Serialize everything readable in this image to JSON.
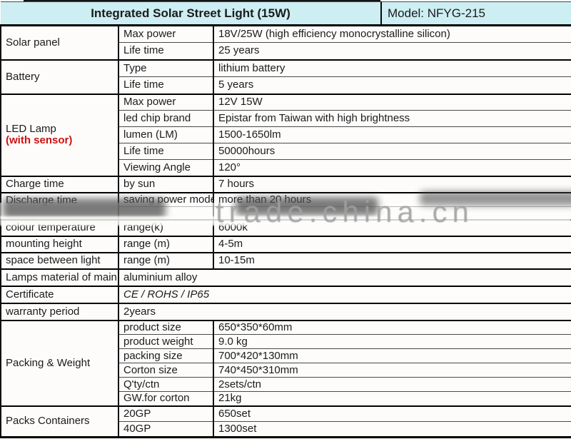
{
  "header": {
    "title": "Integrated Solar Street Light (15W)",
    "model": "Model: NFYG-215"
  },
  "watermark": {
    "text": "trade.china.cn"
  },
  "colors": {
    "header_bg": "#cdeef2",
    "sensor_red": "#cc1111",
    "watermark_gray": "#a0a0a0"
  },
  "sections": [
    {
      "name": "Solar panel",
      "rows": [
        {
          "param": "Max power",
          "value": "18V/25W (high efficiency monocrystalline silicon)"
        },
        {
          "param": "Life time",
          "value": "25 years"
        }
      ]
    },
    {
      "name": "Battery",
      "rows": [
        {
          "param": "Type",
          "value": "lithium battery"
        },
        {
          "param": "Life time",
          "value": "5 years"
        }
      ]
    },
    {
      "name": "LED Lamp",
      "name2": "(with sensor)",
      "rows": [
        {
          "param": "Max power",
          "value": "12V 15W"
        },
        {
          "param": "led chip brand",
          "value": "Epistar from Taiwan with high brightness"
        },
        {
          "param": "lumen (LM)",
          "value": "1500-1650lm"
        },
        {
          "param": "Life time",
          "value": "50000hours"
        },
        {
          "param": "Viewing Angle",
          "value": "120°"
        }
      ]
    },
    {
      "name": "Charge time",
      "rows": [
        {
          "param": "by sun",
          "value": "7 hours"
        }
      ]
    },
    {
      "name": "Discharge time",
      "rows": [
        {
          "param": "saving power mode",
          "value": "more than 20 hours"
        },
        {
          "param": "",
          "value": ""
        }
      ]
    },
    {
      "name": "colour temperature",
      "rows": [
        {
          "param": "range(k)",
          "value": "6000k"
        }
      ]
    },
    {
      "name": "mounting height",
      "rows": [
        {
          "param": "range (m)",
          "value": "4-5m"
        }
      ]
    },
    {
      "name": "space between light",
      "rows": [
        {
          "param": "range (m)",
          "value": "10-15m"
        }
      ]
    },
    {
      "name": "Lamps material of main",
      "merged": "aluminium alloy"
    },
    {
      "name": "Certificate",
      "merged": "CE / ROHS / IP65",
      "italic": true
    },
    {
      "name": "warranty period",
      "merged": "2years"
    },
    {
      "name": "Packing & Weight",
      "rows": [
        {
          "param": "product size",
          "value": "650*350*60mm"
        },
        {
          "param": "product weight",
          "value": "9.0 kg"
        },
        {
          "param": "packing size",
          "value": "700*420*130mm"
        },
        {
          "param": "Corton size",
          "value": "740*450*310mm"
        },
        {
          "param": "Q'ty/ctn",
          "value": "2sets/ctn"
        },
        {
          "param": "GW.for corton",
          "value": "21kg"
        }
      ]
    },
    {
      "name": "Packs Containers",
      "rows": [
        {
          "param": "20GP",
          "value": "650set"
        },
        {
          "param": "40GP",
          "value": "1300set"
        }
      ]
    }
  ]
}
